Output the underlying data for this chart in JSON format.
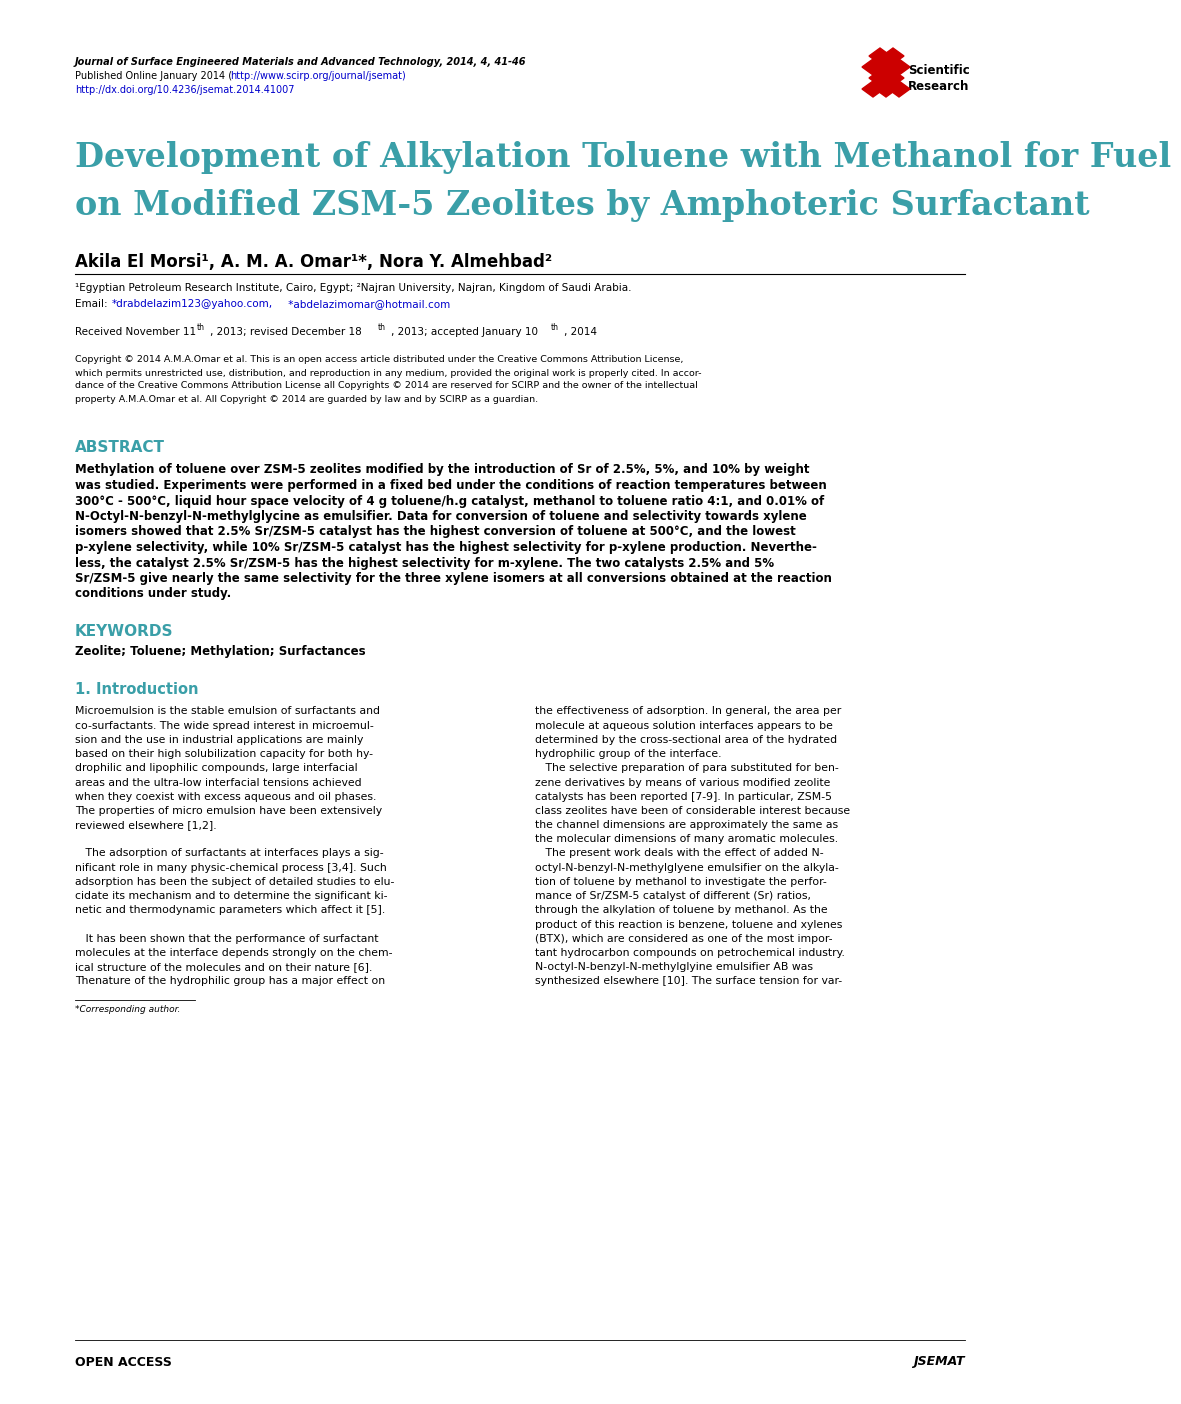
{
  "background_color": "#ffffff",
  "page_width": 10.2,
  "page_height": 13.84,
  "journal_line1_italic": "Journal of Surface Engineered Materials and Advanced Technology",
  "journal_line1_normal": ", 2014, 4, 41-46",
  "journal_line2_pre": "Published Online January 2014 (",
  "journal_line2_url": "http://www.scirp.org/journal/jsemat",
  "journal_line2_post": ")",
  "journal_line3_url": "http://dx.doi.org/10.4236/jsemat.2014.41007",
  "title_line1": "Development of Alkylation Toluene with Methanol for Fuel",
  "title_line2": "on Modified ZSM-5 Zeolites by Amphoteric Surfactant",
  "title_color": "#3a9fa8",
  "authors_line": "Akila El Morsi¹, A. M. A. Omar¹*, Nora Y. Almehbad²",
  "affiliation_line": "¹Egyptian Petroleum Research Institute, Cairo, Egypt; ²Najran University, Najran, Kingdom of Saudi Arabia.",
  "email_pre": "Email: ",
  "email1": "*drabdelazim123@yahoo.com",
  "email_comma": ",",
  "email2": " *abdelazimomar@hotmail.com",
  "received_pre": "Received November 11",
  "received_sup1": "th",
  "received_mid1": ", 2013; revised December 18",
  "received_sup2": "th",
  "received_mid2": ", 2013; accepted January 10",
  "received_sup3": "th",
  "received_post": ", 2014",
  "copyright_lines": [
    "Copyright © 2014 A.M.A.Omar et al. This is an open access article distributed under the Creative Commons Attribution License,",
    "which permits unrestricted use, distribution, and reproduction in any medium, provided the original work is properly cited. In accor-",
    "dance of the Creative Commons Attribution License all Copyrights © 2014 are reserved for SCIRP and the owner of the intellectual",
    "property A.M.A.Omar et al. All Copyright © 2014 are guarded by law and by SCIRP as a guardian."
  ],
  "abstract_title": "ABSTRACT",
  "abstract_lines": [
    "Methylation of toluene over ZSM-5 zeolites modified by the introduction of Sr of 2.5%, 5%, and 10% by weight",
    "was studied. Experiments were performed in a fixed bed under the conditions of reaction temperatures between",
    "300°C - 500°C, liquid hour space velocity of 4 g toluene/h.g catalyst, methanol to toluene ratio 4:1, and 0.01% of",
    "N-Octyl-N-benzyl-N-methylglycine as emulsifier. Data for conversion of toluene and selectivity towards xylene",
    "isomers showed that 2.5% Sr/ZSM-5 catalyst has the highest conversion of toluene at 500°C, and the lowest",
    "p-xylene selectivity, while 10% Sr/ZSM-5 catalyst has the highest selectivity for p-xylene production. Neverthe-",
    "less, the catalyst 2.5% Sr/ZSM-5 has the highest selectivity for m-xylene. The two catalysts 2.5% and 5%",
    "Sr/ZSM-5 give nearly the same selectivity for the three xylene isomers at all conversions obtained at the reaction",
    "conditions under study."
  ],
  "keywords_title": "KEYWORDS",
  "keywords_line": "Zeolite; Toluene; Methylation; Surfactances",
  "intro_title": "1. Introduction",
  "col1_lines": [
    "Microemulsion is the stable emulsion of surfactants and",
    "co-surfactants. The wide spread interest in microemul-",
    "sion and the use in industrial applications are mainly",
    "based on their high solubilization capacity for both hy-",
    "drophilic and lipophilic compounds, large interfacial",
    "areas and the ultra-low interfacial tensions achieved",
    "when they coexist with excess aqueous and oil phases.",
    "The properties of micro emulsion have been extensively",
    "reviewed elsewhere [1,2].",
    "",
    "   The adsorption of surfactants at interfaces plays a sig-",
    "nificant role in many physic-chemical process [3,4]. Such",
    "adsorption has been the subject of detailed studies to elu-",
    "cidate its mechanism and to determine the significant ki-",
    "netic and thermodynamic parameters which affect it [5].",
    "",
    "   It has been shown that the performance of surfactant",
    "molecules at the interface depends strongly on the chem-",
    "ical structure of the molecules and on their nature [6].",
    "Thenature of the hydrophilic group has a major effect on"
  ],
  "col2_lines": [
    "the effectiveness of adsorption. In general, the area per",
    "molecule at aqueous solution interfaces appears to be",
    "determined by the cross-sectional area of the hydrated",
    "hydrophilic group of the interface.",
    "   The selective preparation of para substituted for ben-",
    "zene derivatives by means of various modified zeolite",
    "catalysts has been reported [7-9]. In particular, ZSM-5",
    "class zeolites have been of considerable interest because",
    "the channel dimensions are approximately the same as",
    "the molecular dimensions of many aromatic molecules.",
    "   The present work deals with the effect of added N-",
    "octyl-N-benzyl-N-methylglyene emulsifier on the alkyla-",
    "tion of toluene by methanol to investigate the perfor-",
    "mance of Sr/ZSM-5 catalyst of different (Sr) ratios,",
    "through the alkylation of toluene by methanol. As the",
    "product of this reaction is benzene, toluene and xylenes",
    "(BTX), which are considered as one of the most impor-",
    "tant hydrocarbon compounds on petrochemical industry.",
    "N-octyl-N-benzyl-N-methylglyine emulsifier AB was",
    "synthesized elsewhere [10]. The surface tension for var-"
  ],
  "footnote": "*Corresponding author.",
  "footer_left": "OPEN ACCESS",
  "footer_right": "JSEMAT",
  "title_color_hex": "#3a9fa8",
  "link_color_hex": "#0000cc",
  "text_color_hex": "#000000"
}
